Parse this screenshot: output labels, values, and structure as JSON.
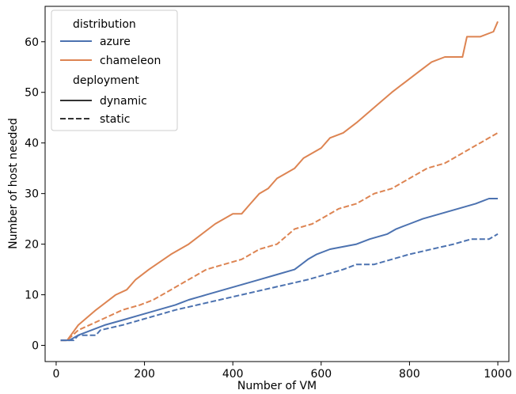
{
  "chart_data": {
    "type": "line",
    "title": "",
    "xlabel": "Number of VM",
    "ylabel": "Number of host needed",
    "xlim": [
      -25,
      1025
    ],
    "ylim": [
      -3.2,
      67
    ],
    "xticks": [
      0,
      200,
      400,
      600,
      800,
      1000
    ],
    "yticks": [
      0,
      10,
      20,
      30,
      40,
      50,
      60
    ],
    "grid": false,
    "legend": {
      "placement": "top-left",
      "hue_title": "distribution",
      "hue_entries": [
        {
          "label": "azure",
          "color": "#4c72b0"
        },
        {
          "label": "chameleon",
          "color": "#dd8452"
        }
      ],
      "style_title": "deployment",
      "style_entries": [
        {
          "label": "dynamic",
          "dash": "solid"
        },
        {
          "label": "static",
          "dash": "dashed"
        }
      ]
    },
    "series": [
      {
        "name": "chameleon",
        "deployment": "dynamic",
        "color": "#dd8452",
        "dash": "solid",
        "points": [
          [
            10,
            1
          ],
          [
            25,
            1
          ],
          [
            50,
            4
          ],
          [
            90,
            7
          ],
          [
            135,
            10
          ],
          [
            160,
            11
          ],
          [
            180,
            13
          ],
          [
            210,
            15
          ],
          [
            260,
            18
          ],
          [
            300,
            20
          ],
          [
            360,
            24
          ],
          [
            400,
            26
          ],
          [
            420,
            26
          ],
          [
            440,
            28
          ],
          [
            460,
            30
          ],
          [
            480,
            31
          ],
          [
            500,
            33
          ],
          [
            520,
            34
          ],
          [
            540,
            35
          ],
          [
            560,
            37
          ],
          [
            600,
            39
          ],
          [
            620,
            41
          ],
          [
            650,
            42
          ],
          [
            680,
            44
          ],
          [
            720,
            47
          ],
          [
            760,
            50
          ],
          [
            790,
            52
          ],
          [
            820,
            54
          ],
          [
            850,
            56
          ],
          [
            880,
            57
          ],
          [
            920,
            57
          ],
          [
            930,
            61
          ],
          [
            960,
            61
          ],
          [
            990,
            62
          ],
          [
            1000,
            64
          ]
        ]
      },
      {
        "name": "chameleon",
        "deployment": "static",
        "color": "#dd8452",
        "dash": "dashed",
        "points": [
          [
            10,
            1
          ],
          [
            25,
            1
          ],
          [
            50,
            3
          ],
          [
            100,
            5
          ],
          [
            150,
            7
          ],
          [
            190,
            8
          ],
          [
            220,
            9
          ],
          [
            260,
            11
          ],
          [
            300,
            13
          ],
          [
            340,
            15
          ],
          [
            380,
            16
          ],
          [
            420,
            17
          ],
          [
            460,
            19
          ],
          [
            500,
            20
          ],
          [
            540,
            23
          ],
          [
            580,
            24
          ],
          [
            600,
            25
          ],
          [
            640,
            27
          ],
          [
            680,
            28
          ],
          [
            720,
            30
          ],
          [
            760,
            31
          ],
          [
            800,
            33
          ],
          [
            840,
            35
          ],
          [
            880,
            36
          ],
          [
            920,
            38
          ],
          [
            960,
            40
          ],
          [
            980,
            41
          ],
          [
            1000,
            42
          ]
        ]
      },
      {
        "name": "azure",
        "deployment": "dynamic",
        "color": "#4c72b0",
        "dash": "solid",
        "points": [
          [
            10,
            1
          ],
          [
            30,
            1
          ],
          [
            50,
            2
          ],
          [
            80,
            3
          ],
          [
            110,
            4
          ],
          [
            150,
            5
          ],
          [
            190,
            6
          ],
          [
            230,
            7
          ],
          [
            270,
            8
          ],
          [
            300,
            9
          ],
          [
            340,
            10
          ],
          [
            380,
            11
          ],
          [
            420,
            12
          ],
          [
            460,
            13
          ],
          [
            500,
            14
          ],
          [
            540,
            15
          ],
          [
            570,
            17
          ],
          [
            590,
            18
          ],
          [
            620,
            19
          ],
          [
            680,
            20
          ],
          [
            710,
            21
          ],
          [
            750,
            22
          ],
          [
            770,
            23
          ],
          [
            800,
            24
          ],
          [
            830,
            25
          ],
          [
            870,
            26
          ],
          [
            910,
            27
          ],
          [
            950,
            28
          ],
          [
            980,
            29
          ],
          [
            1000,
            29
          ]
        ]
      },
      {
        "name": "azure",
        "deployment": "static",
        "color": "#4c72b0",
        "dash": "dashed",
        "points": [
          [
            10,
            1
          ],
          [
            40,
            1
          ],
          [
            50,
            2
          ],
          [
            90,
            2
          ],
          [
            100,
            3
          ],
          [
            150,
            4
          ],
          [
            190,
            5
          ],
          [
            230,
            6
          ],
          [
            270,
            7
          ],
          [
            320,
            8
          ],
          [
            370,
            9
          ],
          [
            420,
            10
          ],
          [
            470,
            11
          ],
          [
            520,
            12
          ],
          [
            570,
            13
          ],
          [
            610,
            14
          ],
          [
            650,
            15
          ],
          [
            680,
            16
          ],
          [
            720,
            16
          ],
          [
            760,
            17
          ],
          [
            800,
            18
          ],
          [
            850,
            19
          ],
          [
            900,
            20
          ],
          [
            940,
            21
          ],
          [
            980,
            21
          ],
          [
            1000,
            22
          ]
        ]
      }
    ]
  }
}
